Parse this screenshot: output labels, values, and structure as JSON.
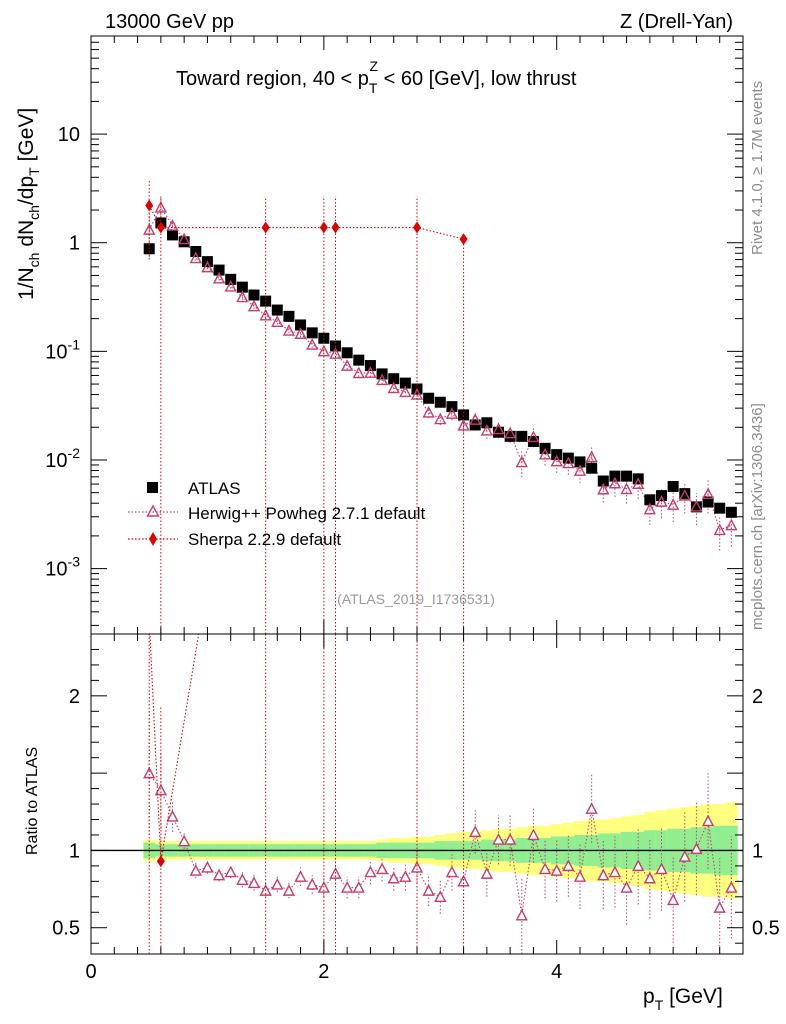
{
  "header": {
    "left": "13000 GeV pp",
    "right": "Z (Drell-Yan)",
    "title_prefix": "Toward region, 40 < p",
    "title_sup": "Z",
    "title_sub": "T",
    "title_suffix": " < 60 [GeV], low thrust"
  },
  "side_labels": {
    "rivet": "Rivet 4.1.0, ≥ 1.7M events",
    "mcplots": "mcplots.cern.ch [arXiv:1306.3436]"
  },
  "watermark": "(ATLAS_2019_I1736531)",
  "axes": {
    "ylabel_main": "1/N",
    "ylabel_main_sub1": "ch",
    "ylabel_main_mid": " dN",
    "ylabel_main_sub2": "ch",
    "ylabel_main_mid2": "/dp",
    "ylabel_main_sub3": "T",
    "ylabel_main_suffix": " [GeV]",
    "ylabel_ratio": "Ratio to ATLAS",
    "xlabel_main": "p",
    "xlabel_sub": "T",
    "xlabel_suffix": " [GeV]"
  },
  "legend": {
    "atlas": "ATLAS",
    "herwig": "Herwig++ Powheg 2.7.1 default",
    "sherpa": "Sherpa 2.2.9 default"
  },
  "colors": {
    "atlas": "#000000",
    "herwig": "#c83c6e",
    "sherpa": "#e00000",
    "band_inner": "#90ee90",
    "band_outer": "#ffff80"
  },
  "chart_data": {
    "type": "scatter",
    "xlim": [
      0,
      5.6
    ],
    "ylim_main_log": [
      0.00025,
      80
    ],
    "ylim_ratio": [
      0.33,
      2.4
    ],
    "x_ticks": [
      "0",
      "2",
      "4"
    ],
    "y_ticks_main": [
      "10^-3",
      "10^-2",
      "10^-1",
      "1",
      "10"
    ],
    "y_ticks_ratio": [
      "0.5",
      "1",
      "2"
    ],
    "series": [
      {
        "name": "ATLAS",
        "x": [
          0.5,
          0.6,
          0.7,
          0.8,
          0.9,
          1.0,
          1.1,
          1.2,
          1.3,
          1.4,
          1.5,
          1.6,
          1.7,
          1.8,
          1.9,
          2.0,
          2.1,
          2.2,
          2.3,
          2.4,
          2.5,
          2.6,
          2.7,
          2.8,
          2.9,
          3.0,
          3.1,
          3.2,
          3.3,
          3.4,
          3.5,
          3.6,
          3.7,
          3.8,
          3.9,
          4.0,
          4.1,
          4.2,
          4.3,
          4.4,
          4.5,
          4.6,
          4.7,
          4.8,
          4.9,
          5.0,
          5.1,
          5.2,
          5.3,
          5.4,
          5.5
        ],
        "y": [
          0.88,
          1.52,
          1.18,
          1.02,
          0.83,
          0.67,
          0.56,
          0.46,
          0.39,
          0.33,
          0.29,
          0.24,
          0.21,
          0.175,
          0.148,
          0.132,
          0.112,
          0.097,
          0.083,
          0.074,
          0.062,
          0.056,
          0.051,
          0.045,
          0.037,
          0.034,
          0.031,
          0.026,
          0.021,
          0.022,
          0.018,
          0.0165,
          0.0165,
          0.0148,
          0.0128,
          0.0112,
          0.0104,
          0.0096,
          0.0084,
          0.0064,
          0.0071,
          0.0071,
          0.0067,
          0.0043,
          0.0047,
          0.0057,
          0.0049,
          0.0037,
          0.0041,
          0.0036,
          0.0033
        ],
        "ratio_band_inner": [
          0.05,
          0.04,
          0.04,
          0.04,
          0.04,
          0.04,
          0.04,
          0.04,
          0.04,
          0.04,
          0.04,
          0.04,
          0.04,
          0.04,
          0.04,
          0.04,
          0.04,
          0.04,
          0.04,
          0.04,
          0.05,
          0.05,
          0.05,
          0.05,
          0.05,
          0.06,
          0.06,
          0.06,
          0.06,
          0.07,
          0.07,
          0.07,
          0.08,
          0.08,
          0.08,
          0.09,
          0.09,
          0.1,
          0.1,
          0.11,
          0.11,
          0.12,
          0.12,
          0.13,
          0.13,
          0.14,
          0.14,
          0.15,
          0.15,
          0.16,
          0.16
        ],
        "ratio_band_outer": [
          0.07,
          0.06,
          0.06,
          0.06,
          0.06,
          0.06,
          0.06,
          0.06,
          0.06,
          0.06,
          0.06,
          0.06,
          0.06,
          0.06,
          0.06,
          0.06,
          0.06,
          0.06,
          0.06,
          0.06,
          0.07,
          0.08,
          0.08,
          0.09,
          0.09,
          0.1,
          0.11,
          0.12,
          0.12,
          0.13,
          0.14,
          0.14,
          0.15,
          0.16,
          0.16,
          0.17,
          0.18,
          0.19,
          0.2,
          0.2,
          0.21,
          0.22,
          0.23,
          0.25,
          0.26,
          0.27,
          0.28,
          0.29,
          0.3,
          0.3,
          0.31
        ]
      },
      {
        "name": "Herwig++ Powheg 2.7.1 default",
        "x": [
          0.5,
          0.6,
          0.7,
          0.8,
          0.9,
          1.0,
          1.1,
          1.2,
          1.3,
          1.4,
          1.5,
          1.6,
          1.7,
          1.8,
          1.9,
          2.0,
          2.1,
          2.2,
          2.3,
          2.4,
          2.5,
          2.6,
          2.7,
          2.8,
          2.9,
          3.0,
          3.1,
          3.2,
          3.3,
          3.4,
          3.5,
          3.6,
          3.7,
          3.8,
          3.9,
          4.0,
          4.1,
          4.2,
          4.3,
          4.4,
          4.5,
          4.6,
          4.7,
          4.8,
          4.9,
          5.0,
          5.1,
          5.2,
          5.3,
          5.4,
          5.5
        ],
        "ratio": [
          1.5,
          1.39,
          1.22,
          1.06,
          0.87,
          0.89,
          0.84,
          0.86,
          0.81,
          0.79,
          0.74,
          0.78,
          0.74,
          0.83,
          0.78,
          0.76,
          0.85,
          0.76,
          0.76,
          0.86,
          0.88,
          0.82,
          0.83,
          0.89,
          0.74,
          0.7,
          0.86,
          0.8,
          1.12,
          0.85,
          1.07,
          1.07,
          0.58,
          1.1,
          0.88,
          0.87,
          0.9,
          0.83,
          1.27,
          0.84,
          0.86,
          0.76,
          0.9,
          0.82,
          0.88,
          0.68,
          0.96,
          1.01,
          1.19,
          0.63,
          0.76
        ],
        "ratio_err": [
          0.4,
          0.25,
          0.1,
          0.05,
          0.05,
          0.04,
          0.04,
          0.04,
          0.05,
          0.05,
          0.05,
          0.05,
          0.05,
          0.06,
          0.06,
          0.06,
          0.07,
          0.07,
          0.07,
          0.08,
          0.08,
          0.08,
          0.09,
          0.1,
          0.1,
          0.11,
          0.12,
          0.13,
          0.14,
          0.15,
          0.16,
          0.17,
          0.25,
          0.18,
          0.19,
          0.2,
          0.2,
          0.21,
          0.22,
          0.22,
          0.23,
          0.24,
          0.25,
          0.26,
          0.27,
          0.28,
          0.29,
          0.3,
          0.31,
          0.32,
          0.33
        ]
      },
      {
        "name": "Sherpa 2.2.9 default",
        "x": [
          0.5,
          0.6,
          1.5,
          2.0,
          2.1,
          2.8,
          3.2
        ],
        "y": [
          2.2,
          1.38,
          1.38,
          1.38,
          1.38,
          1.38,
          1.08
        ],
        "ratio": [
          2.5,
          0.93,
          5.0,
          5.0,
          5.0,
          5.0,
          5.0
        ],
        "err_low_main": [
          1.5,
          1.38,
          1.38,
          1.38,
          1.38,
          1.38,
          1.08
        ],
        "err_high_main": [
          1.5,
          1.3,
          1.3,
          1.3,
          1.3,
          1.3,
          0
        ]
      }
    ]
  }
}
